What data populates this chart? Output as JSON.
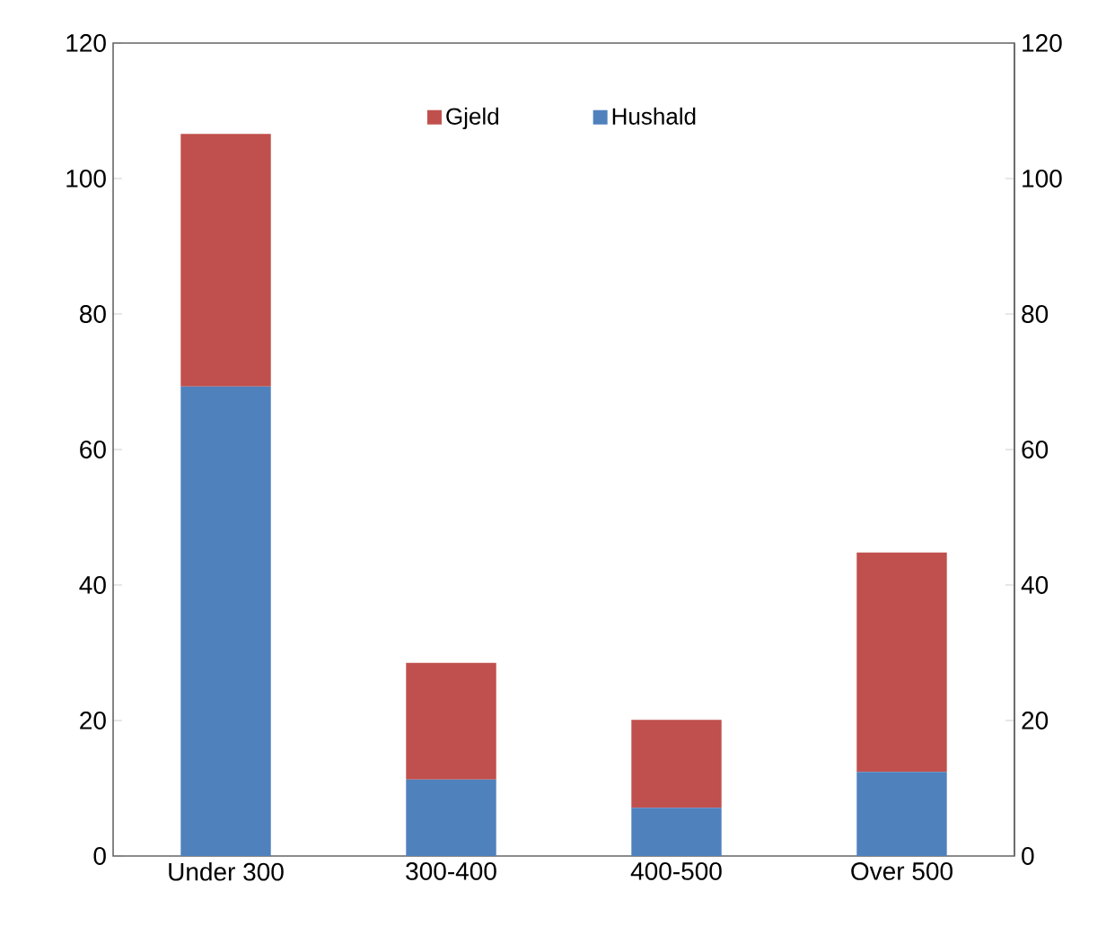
{
  "chart_data": {
    "type": "bar",
    "stacked": true,
    "categories": [
      "Under 300",
      "300-400",
      "400-500",
      "Over 500"
    ],
    "series": [
      {
        "name": "Hushald",
        "color": "#4f81bd",
        "values": [
          69.3,
          11.3,
          7.1,
          12.4
        ]
      },
      {
        "name": "Gjeld",
        "color": "#c0504d",
        "values": [
          37.3,
          17.2,
          13.0,
          32.4
        ]
      }
    ],
    "ylim": [
      0,
      120
    ],
    "yticks": [
      0,
      20,
      40,
      60,
      80,
      100,
      120
    ],
    "y2lim": [
      0,
      120
    ],
    "y2ticks": [
      0,
      20,
      40,
      60,
      80,
      100,
      120
    ],
    "legend": "top",
    "grid": false
  }
}
